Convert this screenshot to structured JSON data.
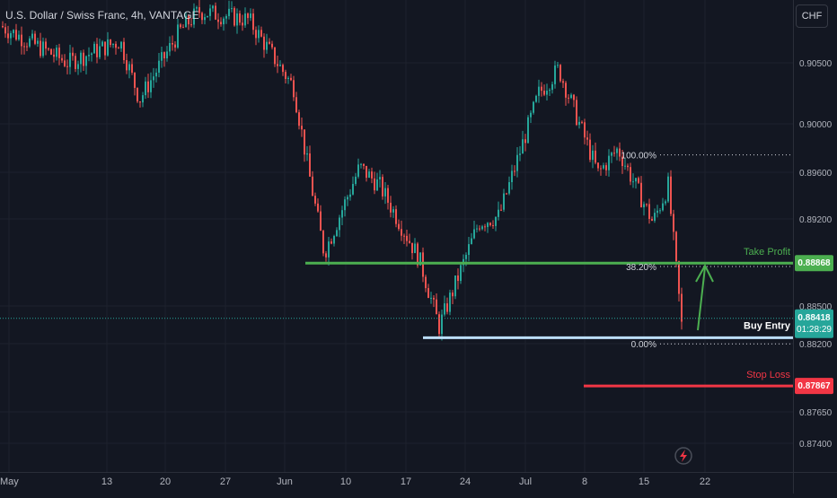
{
  "header": {
    "title": "U.S. Dollar / Swiss Franc, 4h, VANTAGE",
    "currency_button": "CHF"
  },
  "colors": {
    "background": "#131722",
    "bull": "#26a69a",
    "bear": "#ef5350",
    "take_profit": "#4caf50",
    "stop_loss": "#f23645",
    "entry": "#bbdefb",
    "fib": "#d1d4dc",
    "arrow": "#4caf50"
  },
  "icons": [
    "lightning-icon"
  ],
  "chart_data": {
    "type": "candlestick",
    "ylim": [
      0.8722,
      0.9088
    ],
    "x_ticks": [
      "May",
      "13",
      "20",
      "27",
      "Jun",
      "10",
      "17",
      "24",
      "Jul",
      "8",
      "15",
      "22"
    ],
    "y_ticks": [
      "0.90500",
      "0.90000",
      "0.89600",
      "0.89200",
      "0.88500",
      "0.88200",
      "0.87650",
      "0.87400"
    ],
    "current_price": "0.88418",
    "countdown": "01:28:29",
    "levels": {
      "take_profit": {
        "label": "Take Profit",
        "value": 0.88868,
        "price_label": "0.88868"
      },
      "buy_entry": {
        "label": "Buy Entry",
        "value": 0.8826
      },
      "stop_loss": {
        "label": "Stop Loss",
        "value": 0.87867,
        "price_label": "0.87867"
      }
    },
    "fibonacci": [
      {
        "label": "100.00%",
        "value": 0.8975
      },
      {
        "label": "38.20%",
        "value": 0.8884
      },
      {
        "label": "0.00%",
        "value": 0.8821
      }
    ],
    "price_path": [
      {
        "week": "May",
        "value": 0.908
      },
      {
        "week": "May",
        "value": 0.905
      },
      {
        "week": "13",
        "value": 0.9068
      },
      {
        "week": "13",
        "value": 0.902
      },
      {
        "week": "20",
        "value": 0.9075
      },
      {
        "week": "20",
        "value": 0.9092
      },
      {
        "week": "27",
        "value": 0.9085
      },
      {
        "week": "Jun",
        "value": 0.903
      },
      {
        "week": "Jun",
        "value": 0.896
      },
      {
        "week": "Jun",
        "value": 0.8895
      },
      {
        "week": "10",
        "value": 0.8965
      },
      {
        "week": "10",
        "value": 0.895
      },
      {
        "week": "17",
        "value": 0.889
      },
      {
        "week": "17",
        "value": 0.8835
      },
      {
        "week": "24",
        "value": 0.892
      },
      {
        "week": "24",
        "value": 0.8925
      },
      {
        "week": "Jul",
        "value": 0.9025
      },
      {
        "week": "Jul",
        "value": 0.9045
      },
      {
        "week": "8",
        "value": 0.896
      },
      {
        "week": "8",
        "value": 0.898
      },
      {
        "week": "15",
        "value": 0.892
      },
      {
        "week": "15",
        "value": 0.895
      },
      {
        "week": "15",
        "value": 0.8821
      },
      {
        "week": "22",
        "value": 0.8842
      }
    ]
  }
}
